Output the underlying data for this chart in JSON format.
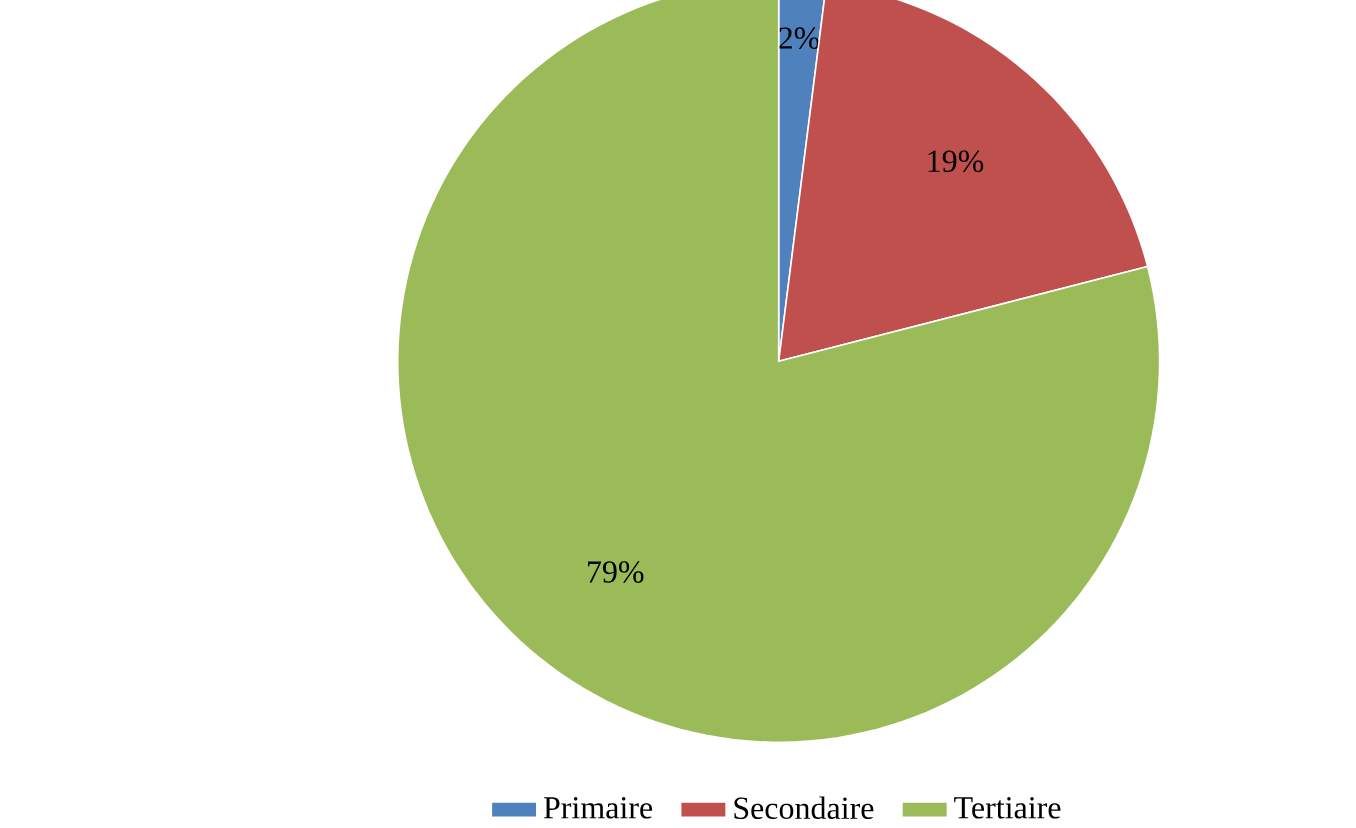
{
  "chart_data": {
    "type": "pie",
    "categories": [
      "Primaire",
      "Secondaire",
      "Tertiaire"
    ],
    "values": [
      2,
      19,
      79
    ],
    "colors": [
      "#4f81bd",
      "#c0504d",
      "#9bbb59"
    ],
    "value_labels": [
      "2%",
      "19%",
      "79%"
    ],
    "legend": "bottom"
  }
}
